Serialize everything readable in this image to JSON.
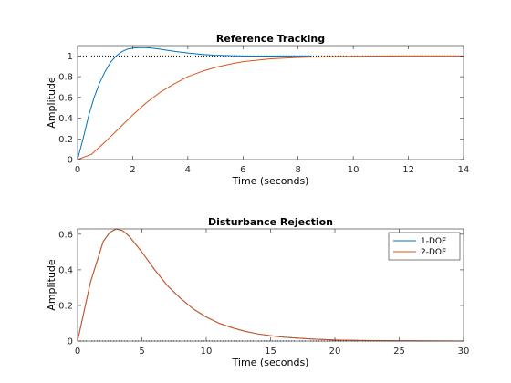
{
  "chart_data": [
    {
      "type": "line",
      "title": "Reference Tracking",
      "xlabel": "Time (seconds)",
      "ylabel": "Amplitude",
      "xlim": [
        0,
        14
      ],
      "ylim": [
        0,
        1.1
      ],
      "xticks": [
        0,
        2,
        4,
        6,
        8,
        10,
        12,
        14
      ],
      "xtick_labels": [
        "0",
        "2",
        "4",
        "6",
        "8",
        "10",
        "12",
        "14"
      ],
      "yticks": [
        0,
        0.2,
        0.4,
        0.6,
        0.8,
        1
      ],
      "ytick_labels": [
        "0",
        "0.2",
        "0.4",
        "0.6",
        "0.8",
        "1"
      ],
      "reference_line": {
        "y": 1,
        "style": "dotted",
        "color": "#000000"
      },
      "grid": false,
      "series": [
        {
          "color": "#0072BD",
          "x": [
            0,
            0.2,
            0.4,
            0.6,
            0.8,
            1.0,
            1.2,
            1.4,
            1.6,
            1.8,
            2.0,
            2.2,
            2.4,
            2.6,
            2.8,
            3.0,
            3.5,
            4.0,
            4.5,
            5.0,
            5.5,
            6.0,
            6.5,
            7.0,
            7.5,
            8.0,
            8.5
          ],
          "y": [
            0,
            0.2,
            0.42,
            0.6,
            0.74,
            0.85,
            0.94,
            1.0,
            1.04,
            1.065,
            1.075,
            1.08,
            1.08,
            1.078,
            1.073,
            1.065,
            1.045,
            1.028,
            1.015,
            1.007,
            1.003,
            1.0,
            0.999,
            0.999,
            1.0,
            1.0,
            1.0
          ]
        },
        {
          "color": "#D95319",
          "x": [
            0,
            0.5,
            1.0,
            1.5,
            2.0,
            2.5,
            3.0,
            3.5,
            4.0,
            4.5,
            5.0,
            5.5,
            6.0,
            7.0,
            8.0,
            9.0,
            10.0,
            11.0,
            12.0,
            13.0,
            14.0
          ],
          "y": [
            0,
            0.05,
            0.17,
            0.3,
            0.43,
            0.55,
            0.65,
            0.73,
            0.8,
            0.85,
            0.89,
            0.92,
            0.945,
            0.972,
            0.986,
            0.993,
            0.997,
            0.999,
            1.0,
            1.0,
            1.0
          ]
        }
      ]
    },
    {
      "type": "line",
      "title": "Disturbance Rejection",
      "xlabel": "Time (seconds)",
      "ylabel": "Amplitude",
      "xlim": [
        0,
        30
      ],
      "ylim": [
        0,
        0.63
      ],
      "xticks": [
        0,
        5,
        10,
        15,
        20,
        25,
        30
      ],
      "xtick_labels": [
        "0",
        "5",
        "10",
        "15",
        "20",
        "25",
        "30"
      ],
      "yticks": [
        0,
        0.2,
        0.4,
        0.6
      ],
      "ytick_labels": [
        "0",
        "0.2",
        "0.4",
        "0.6"
      ],
      "reference_line": {
        "y": 0,
        "style": "dotted",
        "color": "#000000"
      },
      "grid": false,
      "legend": {
        "location": "top-right",
        "entries": [
          "1-DOF",
          "2-DOF"
        ]
      },
      "series": [
        {
          "name": "1-DOF",
          "color": "#0072BD",
          "x": [
            0,
            1,
            2,
            2.5,
            3,
            3.5,
            4,
            5,
            6,
            7,
            8,
            9,
            10,
            11,
            12,
            13,
            14,
            15,
            16,
            18,
            20,
            22,
            25,
            30
          ],
          "y": [
            0,
            0.33,
            0.56,
            0.61,
            0.63,
            0.62,
            0.59,
            0.5,
            0.4,
            0.31,
            0.24,
            0.18,
            0.135,
            0.1,
            0.075,
            0.055,
            0.04,
            0.03,
            0.022,
            0.012,
            0.006,
            0.003,
            0.001,
            0.0
          ]
        },
        {
          "name": "2-DOF",
          "color": "#D95319",
          "x": [
            0,
            1,
            2,
            2.5,
            3,
            3.5,
            4,
            5,
            6,
            7,
            8,
            9,
            10,
            11,
            12,
            13,
            14,
            15,
            16,
            18,
            20,
            22,
            25,
            30
          ],
          "y": [
            0,
            0.33,
            0.56,
            0.61,
            0.63,
            0.62,
            0.59,
            0.5,
            0.4,
            0.31,
            0.24,
            0.18,
            0.135,
            0.1,
            0.075,
            0.055,
            0.04,
            0.03,
            0.022,
            0.012,
            0.006,
            0.003,
            0.001,
            0.0
          ]
        }
      ]
    }
  ]
}
